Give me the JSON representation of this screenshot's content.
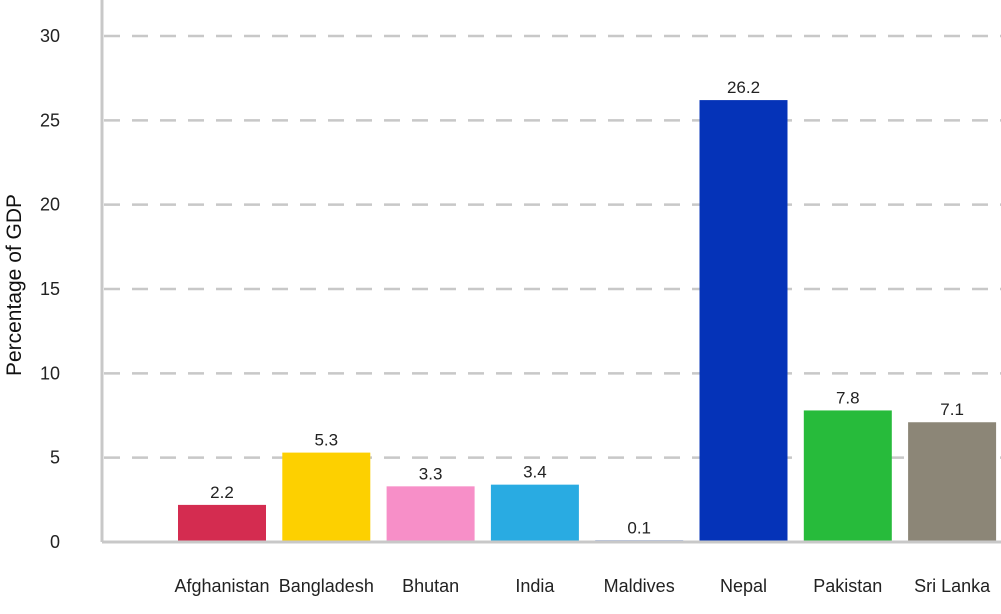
{
  "chart_data": {
    "type": "bar",
    "ylabel": "Percentage of GDP",
    "ylim": [
      0,
      30
    ],
    "yticks": [
      0,
      5,
      10,
      15,
      20,
      25,
      30
    ],
    "grid": true,
    "categories": [
      "Afghanistan",
      "Bangladesh",
      "Bhutan",
      "India",
      "Maldives",
      "Nepal",
      "Pakistan",
      "Sri Lanka"
    ],
    "values": [
      2.2,
      5.3,
      3.3,
      3.4,
      0.1,
      26.2,
      7.8,
      7.1
    ],
    "value_labels": [
      "2.2",
      "5.3",
      "3.3",
      "3.4",
      "0.1",
      "26.2",
      "7.8",
      "7.1"
    ],
    "colors": [
      "#d42c50",
      "#fdd000",
      "#f78fc8",
      "#29abe2",
      "#2e5cb8",
      "#0533b8",
      "#27bb3b",
      "#8c8677"
    ]
  }
}
